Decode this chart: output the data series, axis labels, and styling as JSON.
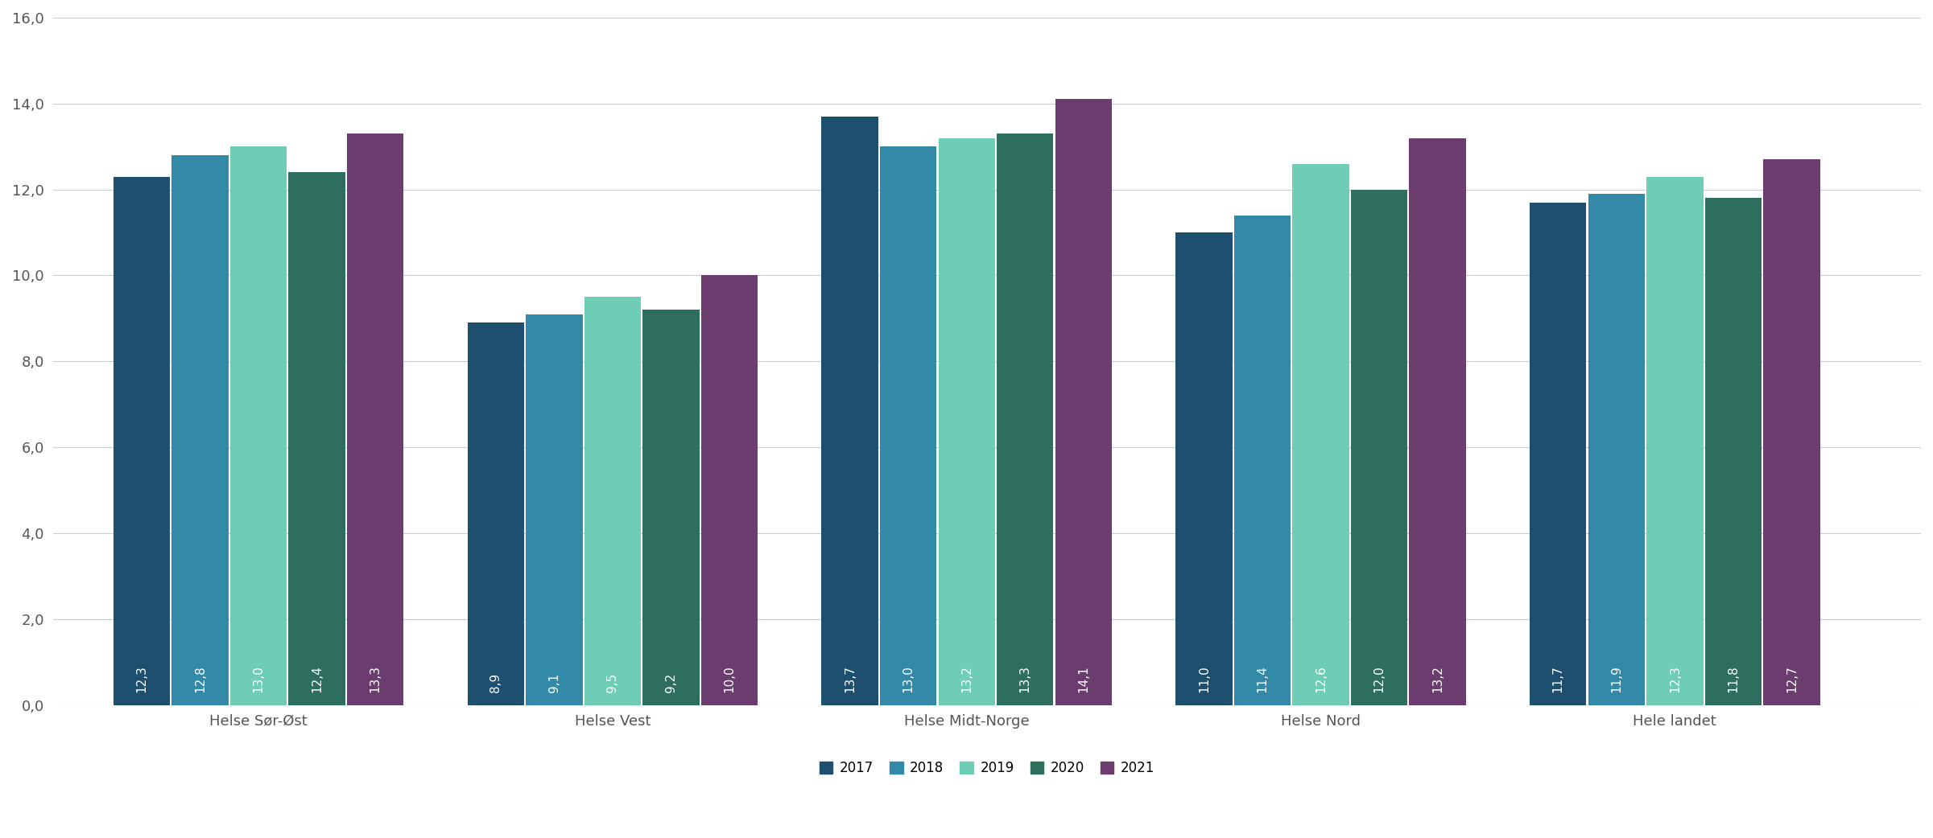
{
  "categories": [
    "Helse Sør-Øst",
    "Helse Vest",
    "Helse Midt-Norge",
    "Helse Nord",
    "Hele landet"
  ],
  "years": [
    "2017",
    "2018",
    "2019",
    "2020",
    "2021"
  ],
  "values": {
    "Helse Sør-Øst": [
      12.3,
      12.8,
      13.0,
      12.4,
      13.3
    ],
    "Helse Vest": [
      8.9,
      9.1,
      9.5,
      9.2,
      10.0
    ],
    "Helse Midt-Norge": [
      13.7,
      13.0,
      13.2,
      13.3,
      14.1
    ],
    "Helse Nord": [
      11.0,
      11.4,
      12.6,
      12.0,
      13.2
    ],
    "Hele landet": [
      11.7,
      11.9,
      12.3,
      11.8,
      12.7
    ]
  },
  "colors": [
    "#1d4f6e",
    "#3389a8",
    "#6ecdb5",
    "#2d6e5e",
    "#6b3d6e"
  ],
  "ylim": [
    0,
    16
  ],
  "yticks": [
    0.0,
    2.0,
    4.0,
    6.0,
    8.0,
    10.0,
    12.0,
    14.0,
    16.0
  ],
  "ytick_labels": [
    "0,0",
    "2,0",
    "4,0",
    "6,0",
    "8,0",
    "10,0",
    "12,0",
    "14,0",
    "16,0"
  ],
  "bar_label_color": "white",
  "bar_label_fontsize": 11,
  "background_color": "#ffffff",
  "grid_color": "#cccccc",
  "axis_label_color": "#555555",
  "legend_fontsize": 12,
  "tick_fontsize": 13
}
